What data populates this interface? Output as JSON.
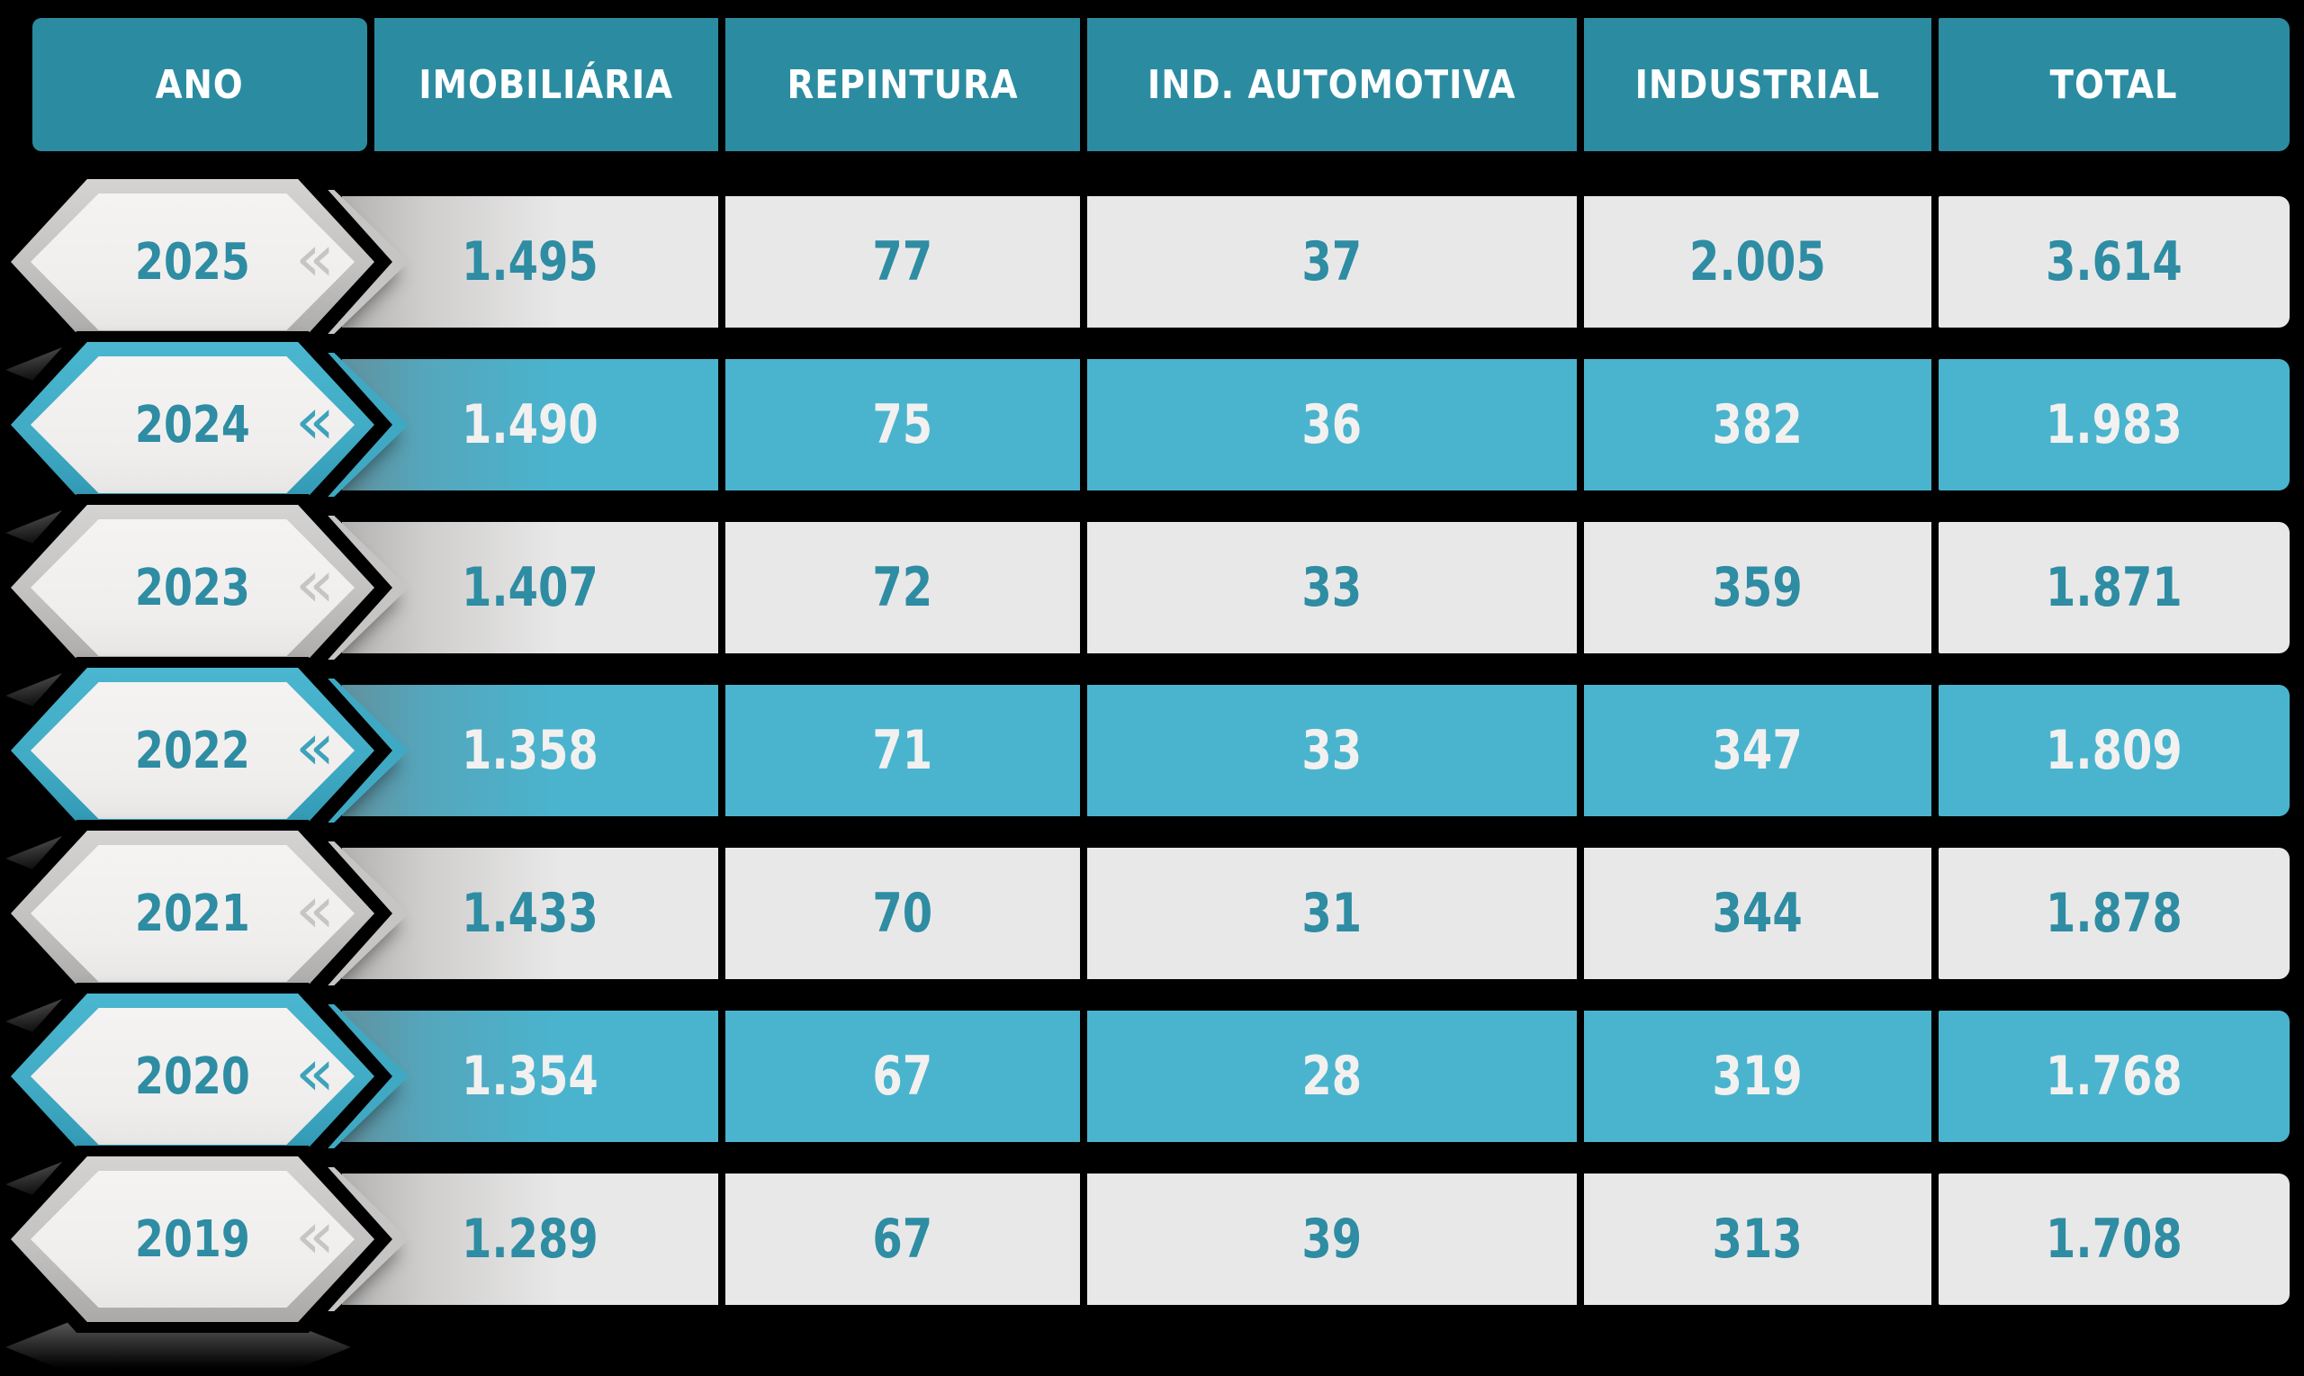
{
  "chart_data": {
    "type": "table",
    "title": "",
    "columns": [
      "ANO",
      "IMOBILIÁRIA",
      "REPINTURA",
      "IND. AUTOMOTIVA",
      "INDUSTRIAL",
      "TOTAL"
    ],
    "rows": [
      {
        "year": "2025",
        "variant": "light",
        "values": [
          "1.495",
          "77",
          "37",
          "2.005",
          "3.614"
        ]
      },
      {
        "year": "2024",
        "variant": "teal",
        "values": [
          "1.490",
          "75",
          "36",
          "382",
          "1.983"
        ]
      },
      {
        "year": "2023",
        "variant": "light",
        "values": [
          "1.407",
          "72",
          "33",
          "359",
          "1.871"
        ]
      },
      {
        "year": "2022",
        "variant": "teal",
        "values": [
          "1.358",
          "71",
          "33",
          "347",
          "1.809"
        ]
      },
      {
        "year": "2021",
        "variant": "light",
        "values": [
          "1.433",
          "70",
          "31",
          "344",
          "1.878"
        ]
      },
      {
        "year": "2020",
        "variant": "teal",
        "values": [
          "1.354",
          "67",
          "28",
          "319",
          "1.768"
        ]
      },
      {
        "year": "2019",
        "variant": "light",
        "values": [
          "1.289",
          "67",
          "39",
          "313",
          "1.708"
        ]
      }
    ]
  },
  "table": {
    "header": [
      "ANO",
      "IMOBILIÁRIA",
      "REPINTURA",
      "IND. AUTOMOTIVA",
      "INDUSTRIAL",
      "TOTAL"
    ],
    "rows": [
      {
        "year": "2025",
        "values": [
          "1.495",
          "77",
          "37",
          "2.005",
          "3.614"
        ]
      },
      {
        "year": "2024",
        "values": [
          "1.490",
          "75",
          "36",
          "382",
          "1.983"
        ]
      },
      {
        "year": "2023",
        "values": [
          "1.407",
          "72",
          "33",
          "359",
          "1.871"
        ]
      },
      {
        "year": "2022",
        "values": [
          "1.358",
          "71",
          "33",
          "347",
          "1.809"
        ]
      },
      {
        "year": "2021",
        "values": [
          "1.433",
          "70",
          "31",
          "344",
          "1.878"
        ]
      },
      {
        "year": "2020",
        "values": [
          "1.354",
          "67",
          "28",
          "319",
          "1.768"
        ]
      },
      {
        "year": "2019",
        "values": [
          "1.289",
          "67",
          "39",
          "313",
          "1.708"
        ]
      }
    ]
  },
  "icons": {
    "year_chevrons": "«"
  },
  "colors": {
    "background": "#000000",
    "header_teal": "#2b8ca1",
    "row_teal": "#4ab4ce",
    "row_light": "#e9e8e8",
    "text_teal": "#2e8ca3",
    "text_light": "#f2f1f0",
    "badge_inner": "#f1f0ef",
    "badge_gray_border": "#c2c1c0",
    "badge_teal_border": "#41abc5"
  }
}
